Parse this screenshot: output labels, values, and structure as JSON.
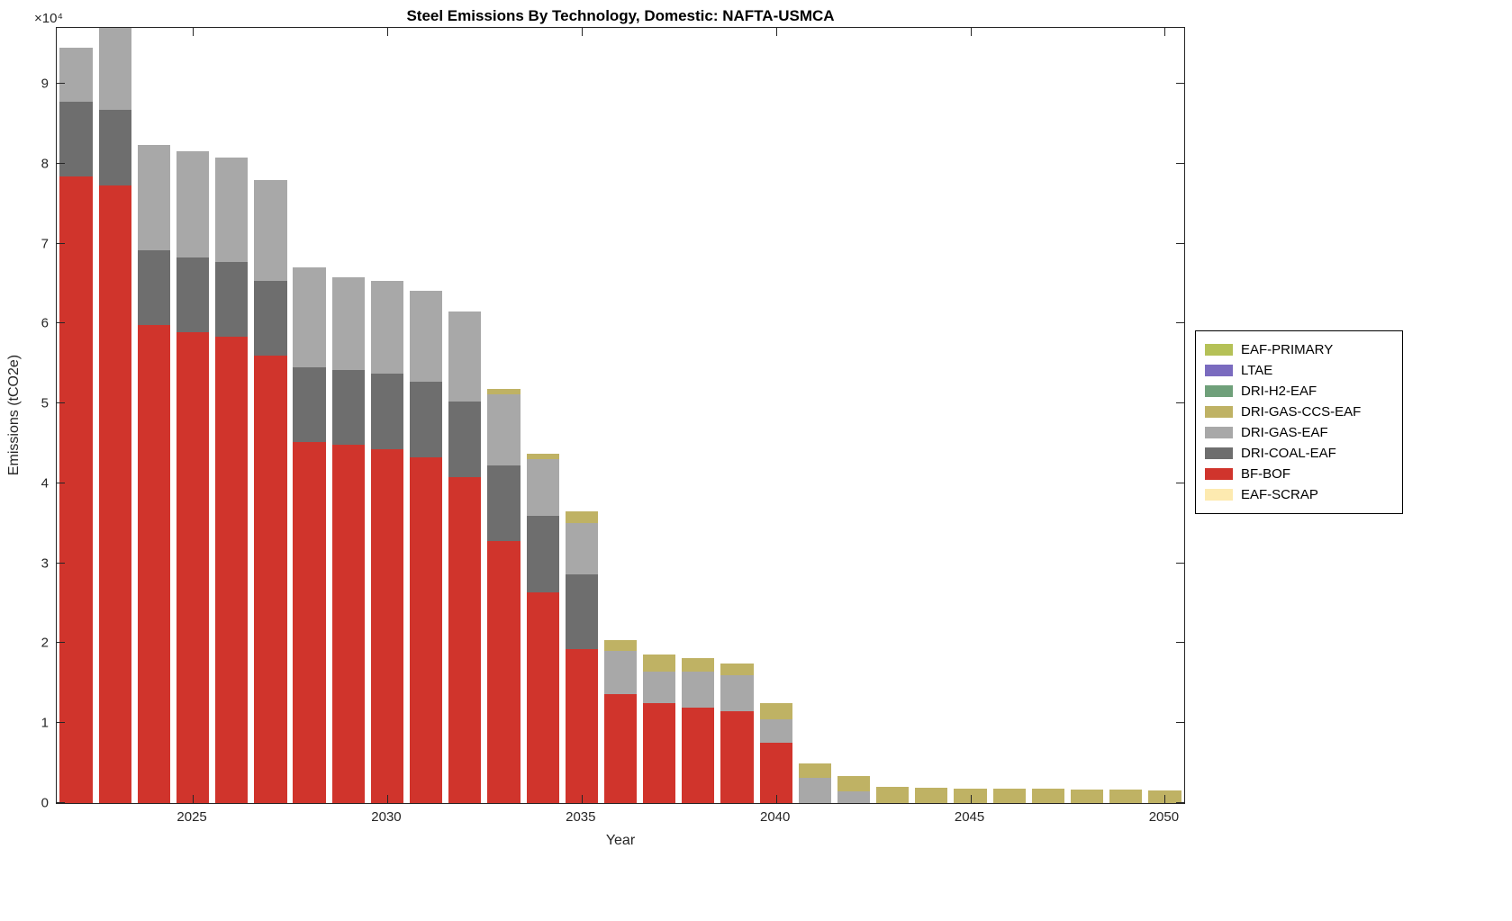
{
  "chart_data": {
    "type": "bar",
    "stacked": true,
    "title": "Steel Emissions By Technology, Domestic: NAFTA-USMCA",
    "xlabel": "Year",
    "ylabel": "Emissions (tCO2e)",
    "y_exponent": "×10⁴",
    "x": [
      2022,
      2023,
      2024,
      2025,
      2026,
      2027,
      2028,
      2029,
      2030,
      2031,
      2032,
      2033,
      2034,
      2035,
      2036,
      2037,
      2038,
      2039,
      2040,
      2041,
      2042,
      2043,
      2044,
      2045,
      2046,
      2047,
      2048,
      2049,
      2050
    ],
    "x_ticks": [
      2025,
      2030,
      2035,
      2040,
      2045,
      2050
    ],
    "ylim": [
      0,
      97000
    ],
    "y_ticks": [
      0,
      10000,
      20000,
      30000,
      40000,
      50000,
      60000,
      70000,
      80000,
      90000
    ],
    "y_tick_labels": [
      "0",
      "1",
      "2",
      "3",
      "4",
      "5",
      "6",
      "7",
      "8",
      "9"
    ],
    "grid": false,
    "legend_position": "right-outside",
    "colors": {
      "EAF-PRIMARY": "#b5c157",
      "LTAE": "#7a6bbf",
      "DRI-H2-EAF": "#6fa07a",
      "DRI-GAS-CCS-EAF": "#bfb264",
      "DRI-GAS-EAF": "#a8a8a8",
      "DRI-COAL-EAF": "#6e6e6e",
      "BF-BOF": "#d0342c",
      "EAF-SCRAP": "#fdeab0"
    },
    "legend": [
      "EAF-PRIMARY",
      "LTAE",
      "DRI-H2-EAF",
      "DRI-GAS-CCS-EAF",
      "DRI-GAS-EAF",
      "DRI-COAL-EAF",
      "BF-BOF",
      "EAF-SCRAP"
    ],
    "series": [
      {
        "name": "BF-BOF",
        "values": [
          78400,
          77300,
          59800,
          58900,
          58400,
          56000,
          45200,
          44800,
          44300,
          43300,
          40800,
          32800,
          26400,
          19300,
          13600,
          12500,
          12000,
          11500,
          7500,
          0,
          0,
          0,
          0,
          0,
          0,
          0,
          0,
          0,
          0
        ]
      },
      {
        "name": "DRI-COAL-EAF",
        "values": [
          9400,
          9400,
          9400,
          9400,
          9300,
          9400,
          9300,
          9400,
          9400,
          9400,
          9400,
          9400,
          9500,
          9300,
          0,
          0,
          0,
          0,
          0,
          0,
          0,
          0,
          0,
          0,
          0,
          0,
          0,
          0,
          0
        ]
      },
      {
        "name": "DRI-GAS-EAF",
        "values": [
          6700,
          10300,
          13200,
          13300,
          13100,
          12600,
          12500,
          11600,
          11600,
          11400,
          11300,
          9000,
          7100,
          6400,
          5400,
          4000,
          4400,
          4500,
          3000,
          3200,
          1500,
          0,
          0,
          0,
          0,
          0,
          0,
          0,
          0
        ]
      },
      {
        "name": "DRI-GAS-CCS-EAF",
        "values": [
          0,
          0,
          0,
          0,
          0,
          0,
          0,
          0,
          0,
          0,
          0,
          600,
          700,
          1500,
          1400,
          2100,
          1700,
          1500,
          2000,
          1800,
          1900,
          2000,
          1900,
          1800,
          1800,
          1800,
          1700,
          1700,
          1600
        ]
      },
      {
        "name": "DRI-H2-EAF",
        "values": [
          0,
          0,
          0,
          0,
          0,
          0,
          0,
          0,
          0,
          0,
          0,
          0,
          0,
          0,
          0,
          0,
          0,
          0,
          0,
          0,
          0,
          0,
          0,
          0,
          0,
          0,
          0,
          0,
          0
        ]
      },
      {
        "name": "LTAE",
        "values": [
          0,
          0,
          0,
          0,
          0,
          0,
          0,
          0,
          0,
          0,
          0,
          0,
          0,
          0,
          0,
          0,
          0,
          0,
          0,
          0,
          0,
          0,
          0,
          0,
          0,
          0,
          0,
          0,
          0
        ]
      },
      {
        "name": "EAF-PRIMARY",
        "values": [
          0,
          0,
          0,
          0,
          0,
          0,
          0,
          0,
          0,
          0,
          0,
          0,
          0,
          0,
          0,
          0,
          0,
          0,
          0,
          0,
          0,
          0,
          0,
          0,
          0,
          0,
          0,
          0,
          0
        ]
      },
      {
        "name": "EAF-SCRAP",
        "values": [
          0,
          0,
          0,
          0,
          0,
          0,
          0,
          0,
          0,
          0,
          0,
          0,
          0,
          0,
          0,
          0,
          0,
          0,
          0,
          0,
          0,
          0,
          0,
          0,
          0,
          0,
          0,
          0,
          0
        ]
      }
    ]
  }
}
